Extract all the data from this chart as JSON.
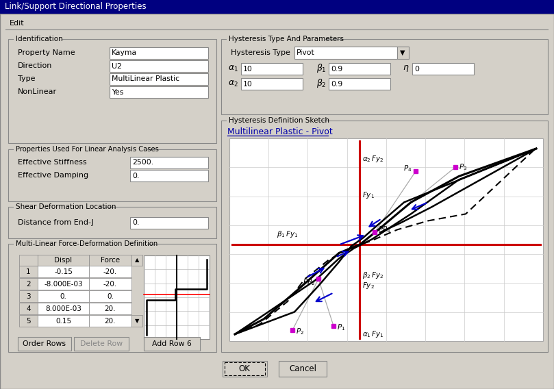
{
  "title_bar_text": "Link/Support Directional Properties",
  "title_bar_color": "#000080",
  "bg_color": "#d4d0c8",
  "id_fields": [
    {
      "label": "Property Name",
      "value": "Kayma"
    },
    {
      "label": "Direction",
      "value": "U2"
    },
    {
      "label": "Type",
      "value": "MultiLinear Plastic"
    },
    {
      "label": "NonLinear",
      "value": "Yes"
    }
  ],
  "linear_fields": [
    {
      "label": "Effective Stiffness",
      "value": "2500."
    },
    {
      "label": "Effective Damping",
      "value": "0."
    }
  ],
  "shear_field": {
    "label": "Distance from End-J",
    "value": "0."
  },
  "table_rows": [
    [
      "1",
      "-0.15",
      "-20."
    ],
    [
      "2",
      "-8.000E-03",
      "-20."
    ],
    [
      "3",
      "0.",
      "0."
    ],
    [
      "4",
      "8.000E-03",
      "20."
    ],
    [
      "5",
      "0.15",
      "20."
    ]
  ],
  "buttons": [
    "Order Rows",
    "Delete Row",
    "Add Row 6"
  ],
  "hyst_type": "Pivot",
  "alpha1": "10",
  "alpha2": "10",
  "beta1": "0.9",
  "beta2": "0.9",
  "eta": "0",
  "sketch_title": "Multilinear Plastic - Pivot",
  "sketch_title_color": "#0000aa",
  "sketch_underline_color": "#0000aa",
  "grid_color": "#cccccc",
  "axis_color": "#cc0000",
  "curve_color": "#000000",
  "arrow_color": "#0000cc",
  "point_color": "#cc00cc",
  "pivot_line_color": "#aaaaaa",
  "ok_button": "OK",
  "cancel_button": "Cancel"
}
